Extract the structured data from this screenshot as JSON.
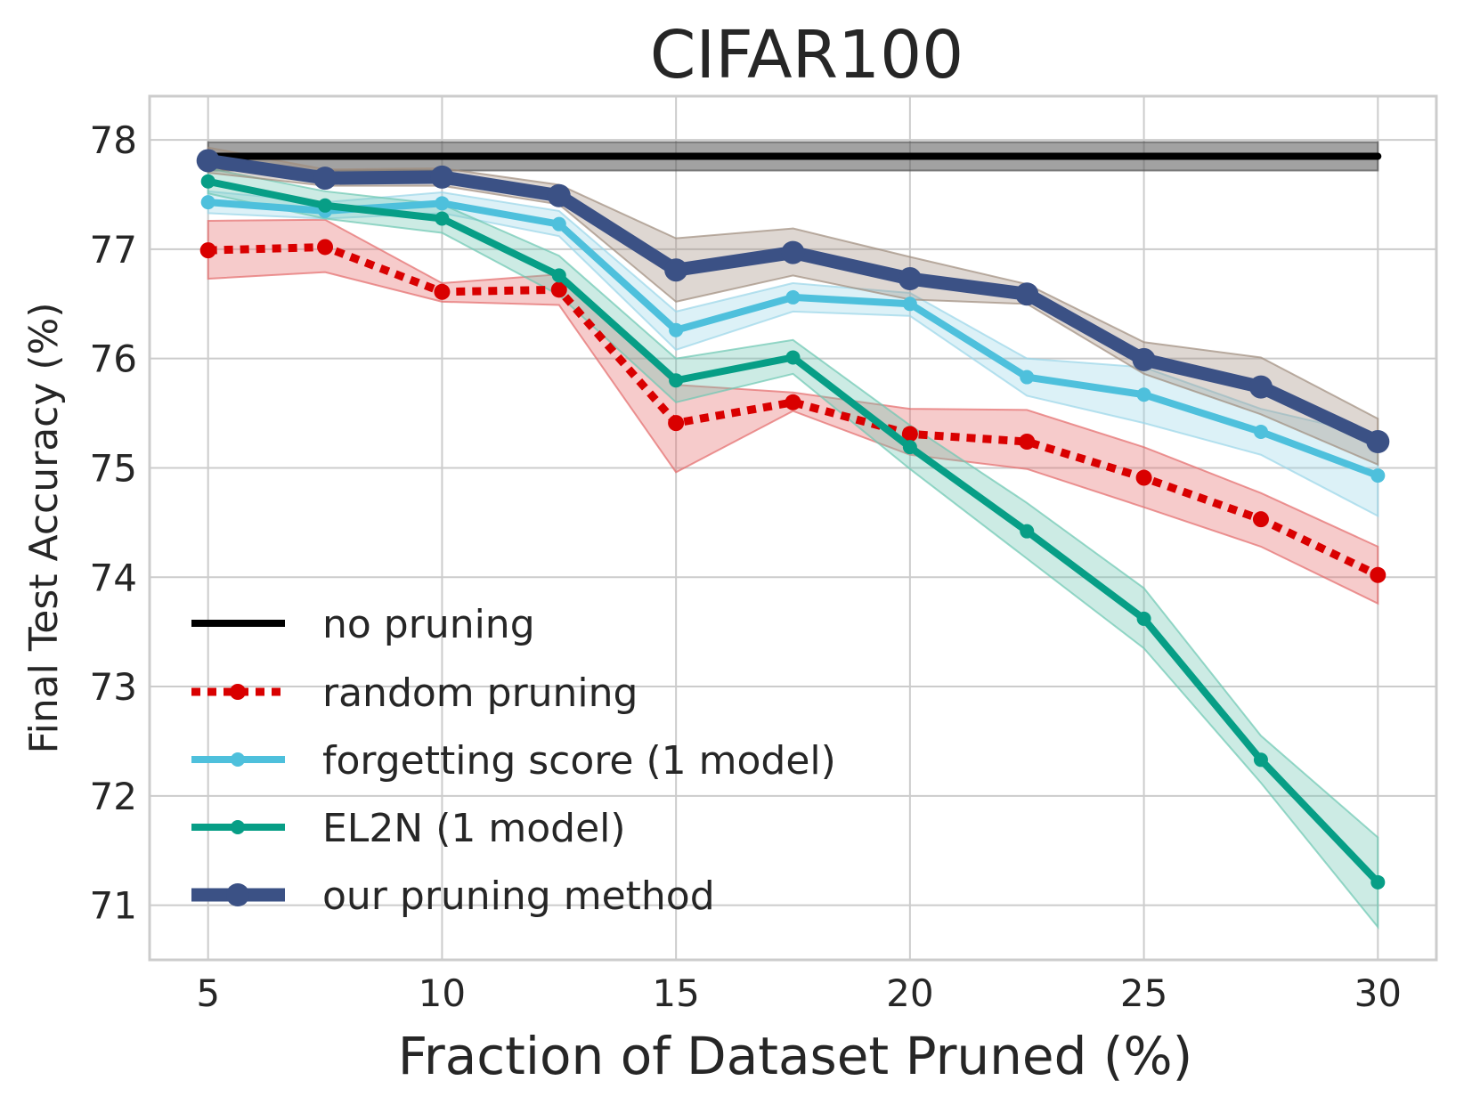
{
  "chart_data": {
    "type": "line",
    "title": "CIFAR100",
    "xlabel": "Fraction of Dataset Pruned (%)",
    "ylabel": "Final Test Accuracy (%)",
    "xlim": [
      3.75,
      31.25
    ],
    "ylim": [
      70.5,
      78.4
    ],
    "xticks": [
      "5",
      "10",
      "15",
      "20",
      "25",
      "30"
    ],
    "yticks": [
      "71",
      "72",
      "73",
      "74",
      "75",
      "76",
      "77",
      "78"
    ],
    "grid": true,
    "legend_position": "lower-left",
    "series": [
      {
        "name": "no pruning",
        "color": "#000000",
        "style": "solid",
        "x": [
          5,
          30
        ],
        "values": [
          77.85,
          77.85
        ],
        "lower": [
          77.72,
          77.72
        ],
        "upper": [
          77.98,
          77.98
        ],
        "band_color": "#555555"
      },
      {
        "name": "random pruning",
        "color": "#d90000",
        "style": "dotted",
        "x": [
          5,
          7.5,
          10,
          12.5,
          15,
          17.5,
          20,
          22.5,
          25,
          27.5,
          30
        ],
        "values": [
          76.99,
          77.02,
          76.61,
          76.63,
          75.41,
          75.6,
          75.31,
          75.24,
          74.91,
          74.53,
          74.02
        ],
        "lower": [
          76.73,
          76.79,
          76.52,
          76.49,
          74.96,
          75.52,
          75.12,
          74.99,
          74.64,
          74.28,
          73.76
        ],
        "upper": [
          77.26,
          77.27,
          76.69,
          76.77,
          75.76,
          75.69,
          75.54,
          75.53,
          75.19,
          74.77,
          74.28
        ],
        "band_color": "#e46b6b"
      },
      {
        "name": "forgetting score (1 model)",
        "color": "#4ec0dc",
        "style": "solid",
        "x": [
          5,
          7.5,
          10,
          12.5,
          15,
          17.5,
          20,
          22.5,
          25,
          27.5,
          30
        ],
        "values": [
          77.43,
          77.35,
          77.42,
          77.23,
          76.26,
          76.56,
          76.5,
          75.83,
          75.67,
          75.33,
          74.93
        ],
        "lower": [
          77.33,
          77.28,
          77.33,
          77.12,
          76.08,
          76.43,
          76.39,
          75.66,
          75.41,
          75.12,
          74.56
        ],
        "upper": [
          77.53,
          77.43,
          77.52,
          77.35,
          76.43,
          76.69,
          76.6,
          76.0,
          75.92,
          75.54,
          75.29
        ],
        "band_color": "#9ad6e8"
      },
      {
        "name": "EL2N (1 model)",
        "color": "#079e86",
        "style": "solid",
        "x": [
          5,
          7.5,
          10,
          12.5,
          15,
          17.5,
          20,
          22.5,
          25,
          27.5,
          30
        ],
        "values": [
          77.62,
          77.4,
          77.28,
          76.76,
          75.8,
          76.01,
          75.19,
          74.42,
          73.62,
          72.33,
          71.21
        ],
        "lower": [
          77.51,
          77.28,
          77.15,
          76.58,
          75.6,
          75.86,
          74.99,
          74.17,
          73.35,
          72.12,
          70.8
        ],
        "upper": [
          77.74,
          77.53,
          77.41,
          76.94,
          76.0,
          76.17,
          75.39,
          74.68,
          73.9,
          72.55,
          71.62
        ],
        "band_color": "#6cc7b2"
      },
      {
        "name": "our pruning method",
        "color": "#3b5185",
        "style": "solid",
        "x": [
          5,
          7.5,
          10,
          12.5,
          15,
          17.5,
          20,
          22.5,
          25,
          27.5,
          30
        ],
        "values": [
          77.81,
          77.65,
          77.66,
          77.49,
          76.81,
          76.97,
          76.73,
          76.59,
          75.99,
          75.74,
          75.24
        ],
        "lower": [
          77.7,
          77.58,
          77.58,
          77.41,
          76.52,
          76.76,
          76.54,
          76.5,
          75.86,
          75.49,
          75.03
        ],
        "upper": [
          77.93,
          77.73,
          77.74,
          77.59,
          77.1,
          77.19,
          76.93,
          76.68,
          76.15,
          76.01,
          75.45
        ],
        "band_color": "#a08d7d"
      }
    ]
  }
}
